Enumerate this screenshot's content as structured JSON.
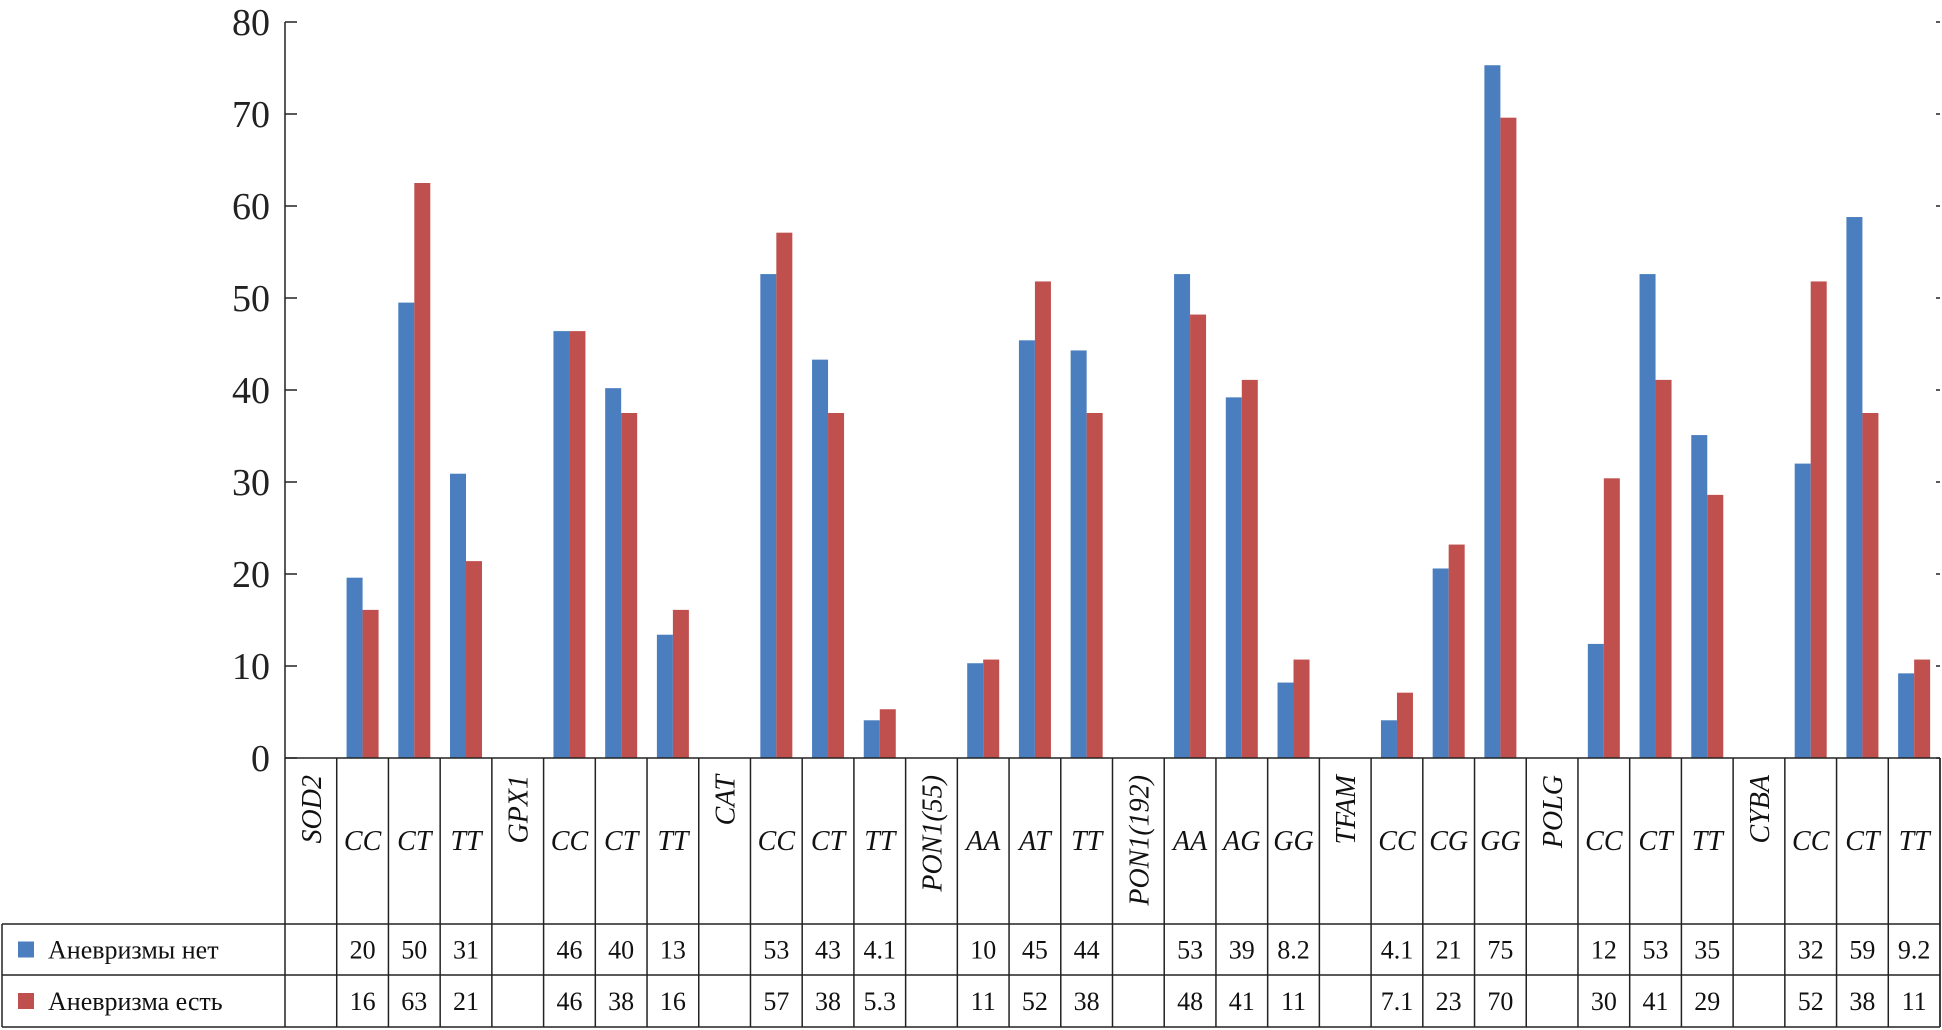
{
  "chart_data": {
    "type": "bar",
    "ylim": [
      0,
      80
    ],
    "yticks": [
      "0",
      "10",
      "20",
      "30",
      "40",
      "50",
      "60",
      "70",
      "80"
    ],
    "categories": [
      "SOD2",
      "CC",
      "CT",
      "TT",
      "GPX1",
      "CC",
      "CT",
      "TT",
      "CAT",
      "CC",
      "CT",
      "TT",
      "PON1(55)",
      "AA",
      "AT",
      "TT",
      "PON1(192)",
      "AA",
      "AG",
      "GG",
      "TFAM",
      "CC",
      "CG",
      "GG",
      "POLG",
      "CC",
      "CT",
      "TT",
      "CYBA",
      "CC",
      "CT",
      "TT"
    ],
    "series": [
      {
        "name": "Аневризмы нет",
        "color": "#4a7ebf",
        "values": [
          null,
          19.6,
          49.5,
          30.9,
          null,
          46.4,
          40.2,
          13.4,
          null,
          52.6,
          43.3,
          4.1,
          null,
          10.3,
          45.4,
          44.3,
          null,
          52.6,
          39.2,
          8.2,
          null,
          4.1,
          20.6,
          75.3,
          null,
          12.4,
          52.6,
          35.1,
          null,
          32.0,
          58.8,
          9.2
        ],
        "labels": [
          "",
          "20",
          "50",
          "31",
          "",
          "46",
          "40",
          "13",
          "",
          "53",
          "43",
          "4.1",
          "",
          "10",
          "45",
          "44",
          "",
          "53",
          "39",
          "8.2",
          "",
          "4.1",
          "21",
          "75",
          "",
          "12",
          "53",
          "35",
          "",
          "32",
          "59",
          "9.2"
        ]
      },
      {
        "name": "Аневризма есть",
        "color": "#c0504d",
        "values": [
          null,
          16.1,
          62.5,
          21.4,
          null,
          46.4,
          37.5,
          16.1,
          null,
          57.1,
          37.5,
          5.3,
          null,
          10.7,
          51.8,
          37.5,
          null,
          48.2,
          41.1,
          10.7,
          null,
          7.1,
          23.2,
          69.6,
          null,
          30.4,
          41.1,
          28.6,
          null,
          51.8,
          37.5,
          10.7
        ],
        "labels": [
          "",
          "16",
          "63",
          "21",
          "",
          "46",
          "38",
          "16",
          "",
          "57",
          "38",
          "5.3",
          "",
          "11",
          "52",
          "38",
          "",
          "48",
          "41",
          "11",
          "",
          "7.1",
          "23",
          "70",
          "",
          "30",
          "41",
          "29",
          "",
          "52",
          "38",
          "11"
        ]
      }
    ]
  }
}
